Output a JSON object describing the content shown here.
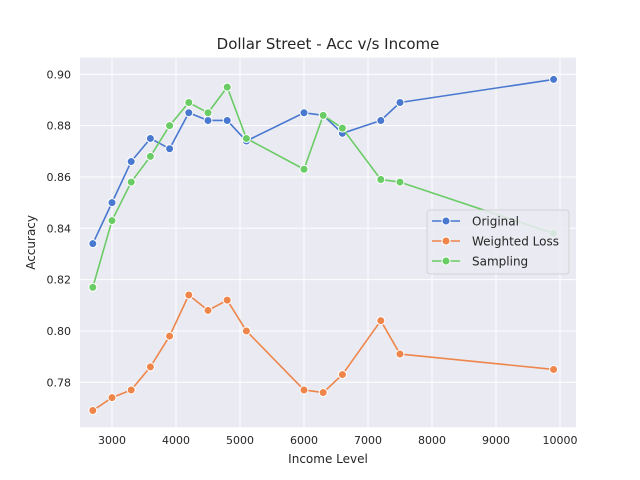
{
  "chart_data": {
    "type": "line",
    "title": "Dollar Street - Acc v/s Income",
    "xlabel": "Income Level",
    "ylabel": "Accuracy",
    "xlim": [
      2500,
      10250
    ],
    "ylim": [
      0.7625,
      0.9065
    ],
    "xticks": [
      3000,
      4000,
      5000,
      6000,
      7000,
      8000,
      9000,
      10000
    ],
    "yticks": [
      0.78,
      0.8,
      0.82,
      0.84,
      0.86,
      0.88,
      0.9
    ],
    "ytick_labels": [
      "0.78",
      "0.80",
      "0.82",
      "0.84",
      "0.86",
      "0.88",
      "0.90"
    ],
    "grid": true,
    "legend_position": "center-right",
    "x": [
      2700,
      3000,
      3300,
      3600,
      3900,
      4200,
      4500,
      4800,
      5100,
      6000,
      6300,
      6600,
      7200,
      7500,
      9900
    ],
    "series": [
      {
        "name": "Original",
        "color": "#4878d0",
        "values": [
          0.834,
          0.85,
          0.866,
          0.875,
          0.871,
          0.885,
          0.882,
          0.882,
          0.874,
          0.885,
          0.884,
          0.877,
          0.882,
          0.889,
          0.898
        ]
      },
      {
        "name": "Weighted Loss",
        "color": "#ee854a",
        "values": [
          0.769,
          0.774,
          0.777,
          0.786,
          0.798,
          0.814,
          0.808,
          0.812,
          0.8,
          0.777,
          0.776,
          0.783,
          0.804,
          0.791,
          0.785
        ]
      },
      {
        "name": "Sampling",
        "color": "#6acc64",
        "values": [
          0.817,
          0.843,
          0.858,
          0.868,
          0.88,
          0.889,
          0.885,
          0.895,
          0.875,
          0.863,
          0.884,
          0.879,
          0.859,
          0.858,
          0.838
        ]
      }
    ],
    "colors": {
      "plot_background": "#eaeaf2",
      "grid": "#ffffff",
      "text": "#262626"
    }
  }
}
